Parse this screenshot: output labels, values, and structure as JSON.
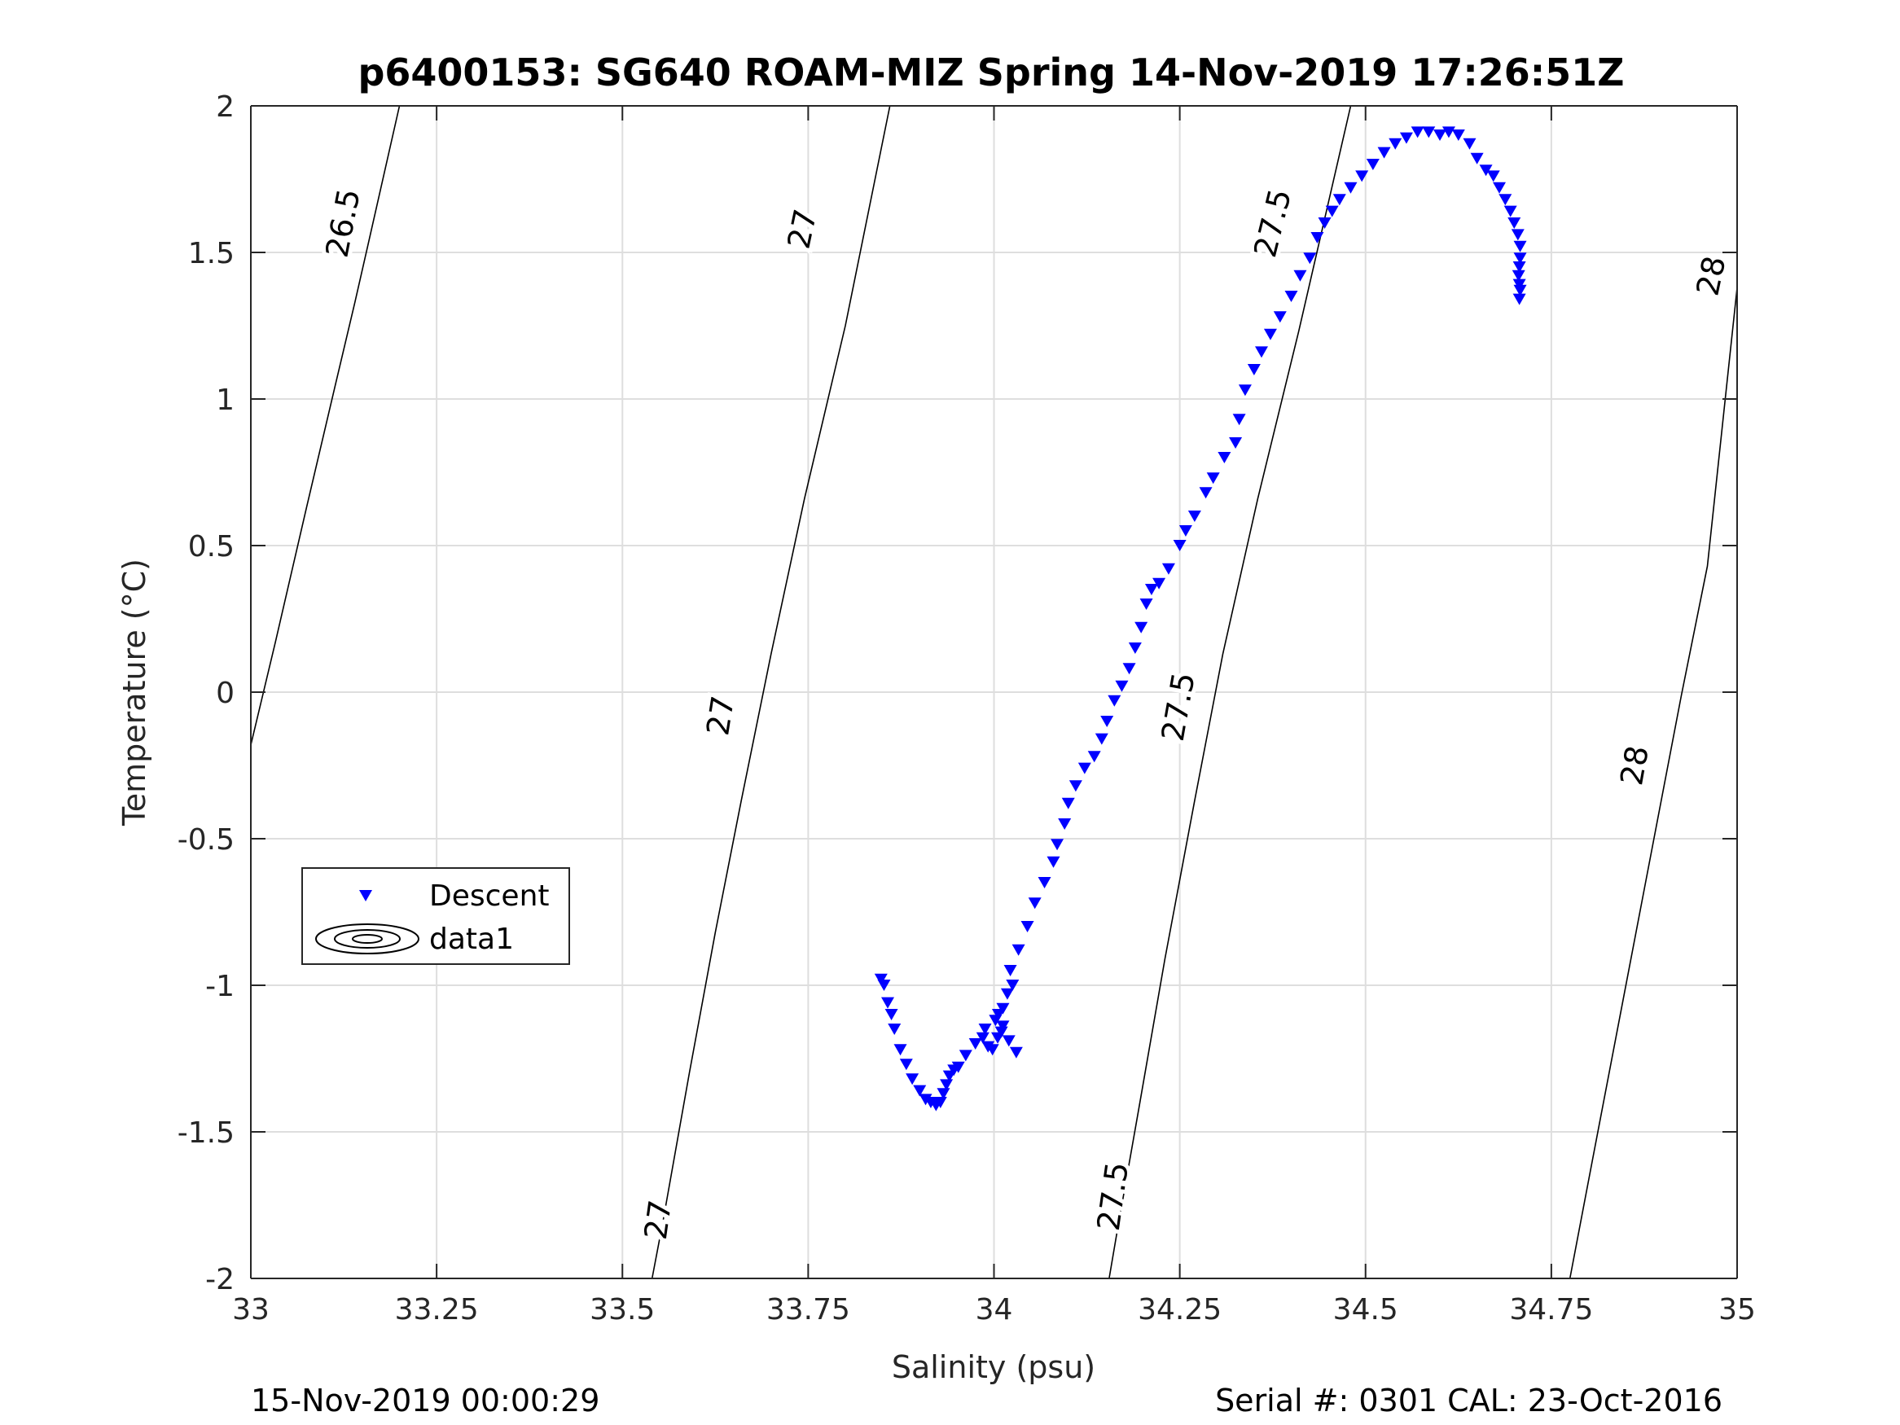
{
  "chart_data": {
    "type": "scatter",
    "title": "p6400153: SG640 ROAM-MIZ Spring 14-Nov-2019 17:26:51Z",
    "xlabel": "Salinity (psu)",
    "ylabel": "Temperature (°C)",
    "xlim": [
      33,
      35
    ],
    "ylim": [
      -2,
      2
    ],
    "xticks": [
      33,
      33.25,
      33.5,
      33.75,
      34,
      34.25,
      34.5,
      34.75,
      35
    ],
    "xtick_labels": [
      "33",
      "33.25",
      "33.5",
      "33.75",
      "34",
      "34.25",
      "34.5",
      "34.75",
      "35"
    ],
    "yticks": [
      2,
      1.5,
      1,
      0.5,
      0,
      -0.5,
      -1,
      -1.5,
      -2
    ],
    "ytick_labels": [
      "2",
      "1.5",
      "1",
      "0.5",
      "0",
      "-0.5",
      "-1",
      "-1.5",
      "-2"
    ],
    "grid": true,
    "legend": {
      "position": "left",
      "entries": [
        "Descent",
        "data1"
      ]
    },
    "footer_left": "15-Nov-2019 00:00:29",
    "footer_right": "Serial #: 0301  CAL: 23-Oct-2016",
    "series": [
      {
        "name": "Descent",
        "marker": "triangle-down",
        "color": "#0000ff",
        "x": [
          33.848,
          33.852,
          33.857,
          33.862,
          33.866,
          33.874,
          33.882,
          33.89,
          33.9,
          33.908,
          33.915,
          33.922,
          33.928,
          33.932,
          33.936,
          33.94,
          33.946,
          33.952,
          33.962,
          33.975,
          33.985,
          33.988,
          33.992,
          33.998,
          34.002,
          34.006,
          34.012,
          34.018,
          34.025,
          34.03,
          34.02,
          34.01,
          34.005,
          34.012,
          34.022,
          34.033,
          34.045,
          34.055,
          34.068,
          34.08,
          34.085,
          34.095,
          34.1,
          34.11,
          34.122,
          34.135,
          34.145,
          34.152,
          34.162,
          34.172,
          34.182,
          34.19,
          34.198,
          34.205,
          34.212,
          34.222,
          34.235,
          34.25,
          34.258,
          34.27,
          34.285,
          34.295,
          34.31,
          34.325,
          34.33,
          34.338,
          34.35,
          34.36,
          34.372,
          34.385,
          34.4,
          34.412,
          34.425,
          34.435,
          34.445,
          34.455,
          34.465,
          34.48,
          34.495,
          34.51,
          34.525,
          34.54,
          34.555,
          34.57,
          34.585,
          34.6,
          34.612,
          34.625,
          34.64,
          34.65,
          34.662,
          34.672,
          34.68,
          34.688,
          34.695,
          34.7,
          34.705,
          34.708,
          34.708,
          34.707,
          34.706,
          34.707,
          34.708,
          34.707
        ],
        "y": [
          -0.98,
          -1.0,
          -1.06,
          -1.1,
          -1.15,
          -1.22,
          -1.27,
          -1.32,
          -1.36,
          -1.39,
          -1.4,
          -1.41,
          -1.4,
          -1.37,
          -1.34,
          -1.31,
          -1.29,
          -1.28,
          -1.24,
          -1.2,
          -1.18,
          -1.15,
          -1.21,
          -1.22,
          -1.12,
          -1.1,
          -1.08,
          -1.03,
          -1.0,
          -1.23,
          -1.19,
          -1.16,
          -1.18,
          -1.14,
          -0.95,
          -0.88,
          -0.8,
          -0.72,
          -0.65,
          -0.58,
          -0.52,
          -0.45,
          -0.38,
          -0.32,
          -0.26,
          -0.22,
          -0.16,
          -0.1,
          -0.03,
          0.02,
          0.08,
          0.15,
          0.22,
          0.3,
          0.35,
          0.37,
          0.42,
          0.5,
          0.55,
          0.6,
          0.68,
          0.73,
          0.8,
          0.85,
          0.93,
          1.03,
          1.1,
          1.16,
          1.22,
          1.28,
          1.35,
          1.42,
          1.48,
          1.55,
          1.6,
          1.64,
          1.68,
          1.72,
          1.76,
          1.8,
          1.84,
          1.87,
          1.89,
          1.91,
          1.91,
          1.9,
          1.91,
          1.9,
          1.87,
          1.82,
          1.78,
          1.76,
          1.72,
          1.68,
          1.64,
          1.6,
          1.56,
          1.52,
          1.48,
          1.45,
          1.42,
          1.39,
          1.37,
          1.34
        ]
      }
    ],
    "contours": [
      {
        "level_label": "26.5",
        "points": [
          [
            33.0,
            -0.18
          ],
          [
            33.033,
            0.17
          ],
          [
            33.075,
            0.63
          ],
          [
            33.113,
            1.04
          ],
          [
            33.14,
            1.33
          ],
          [
            33.158,
            1.53
          ],
          [
            33.2,
            2.0
          ]
        ],
        "labels": [
          {
            "x": 33.124,
            "y": 1.6,
            "angle": -79
          }
        ]
      },
      {
        "level_label": "27",
        "points": [
          [
            33.54,
            -2.0
          ],
          [
            33.555,
            -1.8
          ],
          [
            33.59,
            -1.3
          ],
          [
            33.625,
            -0.82
          ],
          [
            33.66,
            -0.37
          ],
          [
            33.7,
            0.13
          ],
          [
            33.745,
            0.66
          ],
          [
            33.8,
            1.25
          ],
          [
            33.86,
            2.0
          ]
        ],
        "labels": [
          {
            "x": 33.548,
            "y": -1.8,
            "angle": -82
          },
          {
            "x": 33.632,
            "y": -0.08,
            "angle": -81
          },
          {
            "x": 33.742,
            "y": 1.58,
            "angle": -78
          }
        ]
      },
      {
        "level_label": "27.5",
        "points": [
          [
            34.155,
            -2.0
          ],
          [
            34.165,
            -1.85
          ],
          [
            34.195,
            -1.42
          ],
          [
            34.23,
            -0.91
          ],
          [
            34.27,
            -0.37
          ],
          [
            34.308,
            0.13
          ],
          [
            34.355,
            0.66
          ],
          [
            34.41,
            1.23
          ],
          [
            34.48,
            2.0
          ]
        ],
        "labels": [
          {
            "x": 34.16,
            "y": -1.72,
            "angle": -82
          },
          {
            "x": 34.248,
            "y": -0.05,
            "angle": -80
          },
          {
            "x": 34.375,
            "y": 1.6,
            "angle": -76
          }
        ]
      },
      {
        "level_label": "28",
        "points": [
          [
            34.775,
            -2.0
          ],
          [
            34.805,
            -1.6
          ],
          [
            34.845,
            -1.07
          ],
          [
            34.885,
            -0.54
          ],
          [
            34.925,
            -0.01
          ],
          [
            34.96,
            0.43
          ],
          [
            35.0,
            1.38
          ]
        ],
        "labels": [
          {
            "x": 34.862,
            "y": -0.25,
            "angle": -80
          },
          {
            "x": 34.965,
            "y": 1.42,
            "angle": -78
          }
        ]
      }
    ]
  }
}
